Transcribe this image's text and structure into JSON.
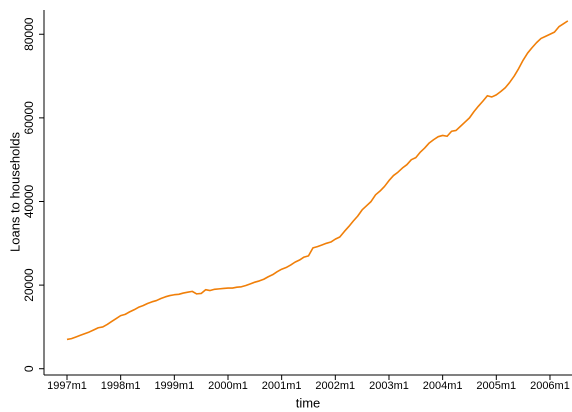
{
  "chart_data": {
    "type": "line",
    "x_label": "time",
    "y_label": "Loans to households",
    "x": [
      "1997m1",
      null,
      null,
      null,
      null,
      null,
      null,
      null,
      null,
      null,
      null,
      null,
      "1998m1",
      null,
      null,
      null,
      null,
      null,
      null,
      null,
      null,
      null,
      null,
      null,
      "1999m1",
      null,
      null,
      null,
      null,
      null,
      null,
      null,
      null,
      null,
      null,
      null,
      "2000m1",
      null,
      null,
      null,
      null,
      null,
      null,
      null,
      null,
      null,
      null,
      null,
      "2001m1",
      null,
      null,
      null,
      null,
      null,
      null,
      null,
      null,
      null,
      null,
      null,
      "2002m1",
      null,
      null,
      null,
      null,
      null,
      null,
      null,
      null,
      null,
      null,
      null,
      "2003m1",
      null,
      null,
      null,
      null,
      null,
      null,
      null,
      null,
      null,
      null,
      null,
      "2004m1",
      null,
      null,
      null,
      null,
      null,
      null,
      null,
      null,
      null,
      null,
      null,
      "2005m1",
      null,
      null,
      null,
      null,
      null,
      null,
      null,
      null,
      null,
      null,
      null,
      "2006m1",
      null,
      null,
      null,
      null
    ],
    "series": [
      {
        "color": "#f07f09",
        "values": [
          7000,
          7200,
          7600,
          8000,
          8400,
          8800,
          9300,
          9800,
          10000,
          10600,
          11300,
          12000,
          12700,
          13000,
          13600,
          14100,
          14700,
          15100,
          15600,
          16000,
          16300,
          16800,
          17200,
          17500,
          17700,
          17800,
          18100,
          18300,
          18500,
          17900,
          18000,
          18900,
          18700,
          19000,
          19100,
          19200,
          19300,
          19300,
          19500,
          19600,
          19900,
          20300,
          20700,
          21000,
          21400,
          22000,
          22500,
          23200,
          23800,
          24200,
          24800,
          25500,
          26000,
          26700,
          27000,
          28900,
          29200,
          29600,
          30000,
          30300,
          31000,
          31500,
          32800,
          34000,
          35300,
          36500,
          38000,
          39000,
          40000,
          41600,
          42500,
          43600,
          45000,
          46200,
          47000,
          48000,
          48800,
          50000,
          50500,
          51800,
          52800,
          54000,
          54800,
          55500,
          55800,
          55600,
          56800,
          57000,
          58000,
          59000,
          60000,
          61500,
          62800,
          64000,
          65300,
          65000,
          65500,
          66300,
          67200,
          68500,
          70000,
          71800,
          73800,
          75500,
          76800,
          78000,
          79000,
          79500,
          80000,
          80500,
          81800,
          82500,
          83200
        ]
      }
    ],
    "ylim": [
      -1500,
      85800
    ],
    "yticks": [
      0,
      20000,
      40000,
      60000,
      80000
    ],
    "grid": false
  }
}
